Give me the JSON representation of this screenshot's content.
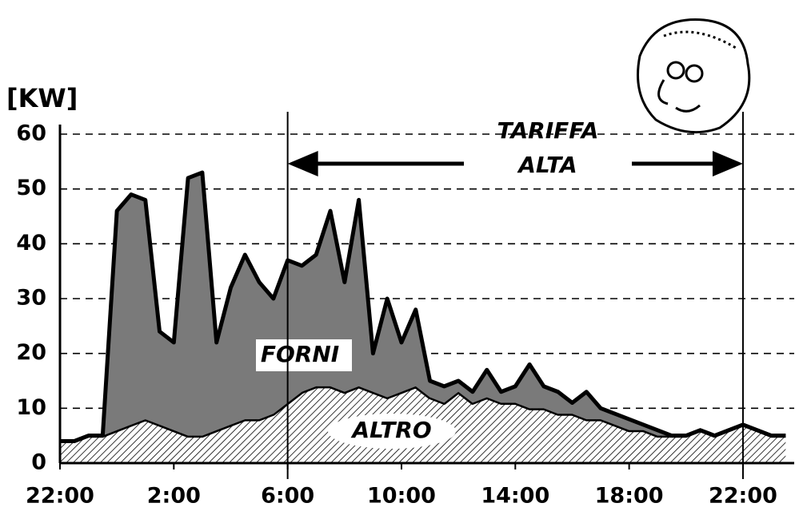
{
  "chart_data": {
    "type": "stacked-area",
    "y_label": "[KW]",
    "x": [
      0,
      0.5,
      1,
      1.5,
      2,
      2.5,
      3,
      3.5,
      4,
      4.5,
      5,
      5.5,
      6,
      6.5,
      7,
      7.5,
      8,
      8.5,
      9,
      9.5,
      10,
      10.5,
      11,
      11.5,
      12,
      12.5,
      13,
      13.5,
      14,
      14.5,
      15,
      15.5,
      16,
      16.5,
      17,
      17.5,
      18,
      18.5,
      19,
      19.5,
      20,
      20.5,
      21,
      21.5,
      22,
      22.5,
      23,
      23.5,
      24,
      24.5,
      25,
      25.5
    ],
    "series": [
      {
        "name": "ALTRO",
        "color": "#000000",
        "values": [
          4,
          4,
          5,
          5,
          6,
          7,
          8,
          7,
          6,
          5,
          5,
          6,
          7,
          8,
          8,
          9,
          11,
          13,
          14,
          14,
          13,
          14,
          13,
          12,
          13,
          14,
          12,
          11,
          13,
          11,
          12,
          11,
          11,
          10,
          10,
          9,
          9,
          8,
          8,
          7,
          6,
          6,
          5,
          5,
          5,
          6,
          5,
          6,
          7,
          6,
          5,
          5
        ]
      },
      {
        "name": "FORNI",
        "color": "#7a7a7a",
        "values": [
          0,
          0,
          0,
          0,
          40,
          42,
          40,
          17,
          16,
          47,
          48,
          16,
          25,
          30,
          25,
          21,
          26,
          23,
          24,
          32,
          20,
          34,
          7,
          18,
          9,
          14,
          3,
          3,
          2,
          2,
          5,
          2,
          3,
          8,
          4,
          4,
          2,
          5,
          2,
          2,
          2,
          1,
          1,
          0,
          0,
          0,
          0,
          0,
          0,
          0,
          0,
          0
        ]
      }
    ],
    "xlim": [
      0,
      25.8
    ],
    "xticks": [
      {
        "value": 0,
        "label": "22:00"
      },
      {
        "value": 4,
        "label": "2:00"
      },
      {
        "value": 8,
        "label": "6:00"
      },
      {
        "value": 12,
        "label": "10:00"
      },
      {
        "value": 16,
        "label": "14:00"
      },
      {
        "value": 20,
        "label": "18:00"
      },
      {
        "value": 24,
        "label": "22:00"
      }
    ],
    "ylim": [
      0,
      60
    ],
    "yticks": [
      0,
      10,
      20,
      30,
      40,
      50,
      60
    ],
    "grid": true,
    "annotation": {
      "lines": [
        "TARIFFA",
        "ALTA"
      ],
      "span": [
        8,
        24
      ]
    }
  }
}
